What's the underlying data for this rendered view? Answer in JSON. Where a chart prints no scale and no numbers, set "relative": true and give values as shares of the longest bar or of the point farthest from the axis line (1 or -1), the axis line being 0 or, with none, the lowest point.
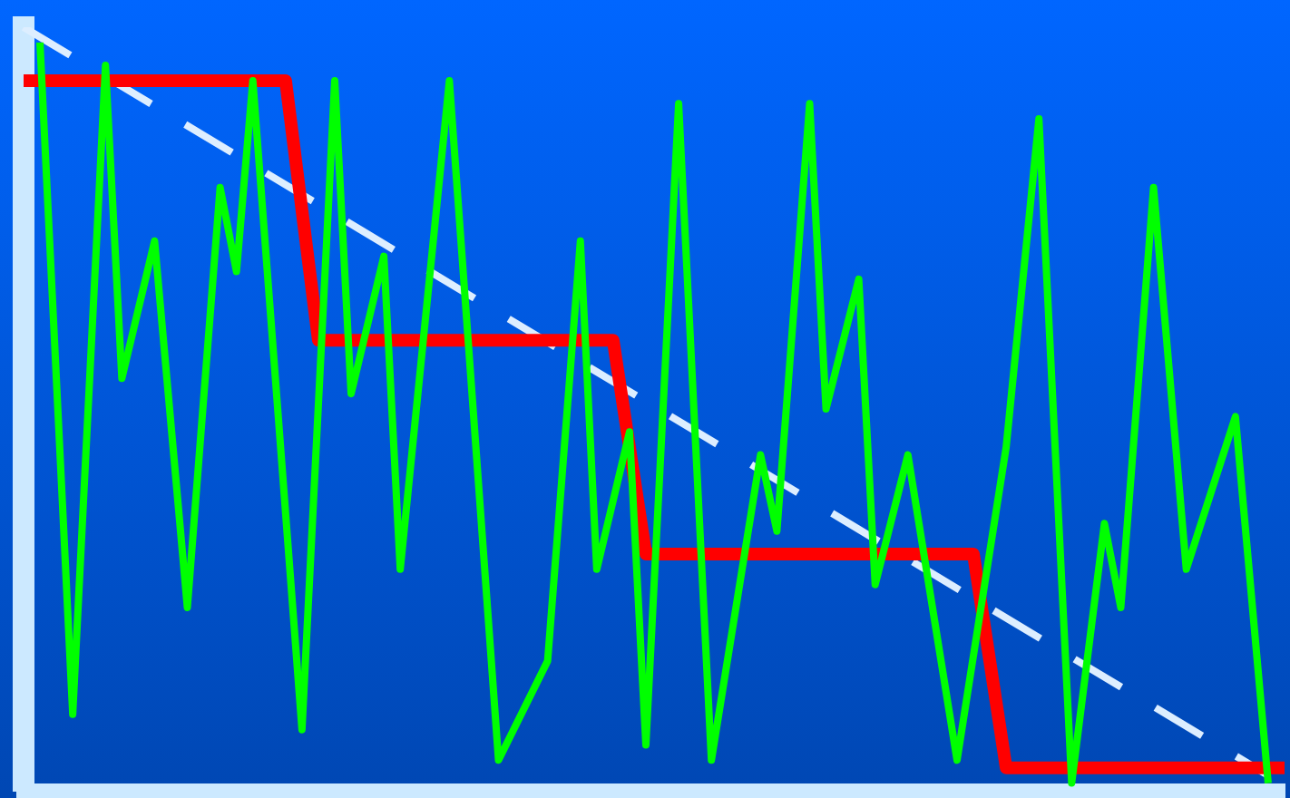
{
  "chart_data": {
    "type": "line",
    "relative": true,
    "categories": [
      null,
      null,
      null,
      null,
      null,
      null,
      null,
      null,
      null,
      null,
      null,
      null,
      null,
      null,
      null,
      null,
      null,
      null,
      null,
      null,
      null,
      null,
      null,
      null,
      null,
      null,
      null,
      null,
      null,
      null,
      null,
      null,
      null,
      null,
      null,
      null,
      null,
      null,
      null,
      null,
      null,
      null,
      null,
      null,
      null,
      null,
      null,
      null,
      null,
      null,
      null,
      null,
      null,
      null,
      null,
      null,
      null,
      null,
      null,
      null,
      null,
      null,
      null,
      null,
      null,
      null,
      null,
      null,
      null,
      null,
      null,
      null,
      null,
      null,
      null,
      null,
      null,
      null
    ],
    "series": [
      {
        "color": "#ddeeff",
        "line_style": "dashed",
        "values": [
          1,
          null,
          null,
          null,
          null,
          null,
          null,
          null,
          null,
          null,
          null,
          null,
          null,
          null,
          null,
          null,
          null,
          null,
          null,
          null,
          null,
          null,
          null,
          null,
          null,
          null,
          null,
          null,
          null,
          null,
          null,
          null,
          null,
          null,
          null,
          null,
          null,
          null,
          null,
          null,
          null,
          null,
          null,
          null,
          null,
          null,
          null,
          null,
          null,
          null,
          null,
          null,
          null,
          null,
          null,
          null,
          null,
          null,
          null,
          null,
          null,
          null,
          null,
          null,
          null,
          null,
          null,
          null,
          null,
          null,
          null,
          null,
          null,
          null,
          null,
          null,
          0.02,
          null
        ]
      },
      {
        "color": "#ff0000",
        "line_style": "solid",
        "values": [
          0.93,
          null,
          null,
          null,
          null,
          null,
          null,
          null,
          null,
          null,
          null,
          null,
          null,
          null,
          null,
          null,
          0.93,
          null,
          0.59,
          null,
          null,
          null,
          null,
          null,
          null,
          null,
          null,
          null,
          null,
          null,
          null,
          null,
          null,
          null,
          null,
          null,
          0.59,
          null,
          0.31,
          null,
          null,
          null,
          null,
          null,
          null,
          null,
          null,
          null,
          null,
          null,
          null,
          null,
          null,
          null,
          null,
          null,
          null,
          null,
          0.31,
          null,
          0.03,
          null,
          null,
          null,
          null,
          null,
          null,
          null,
          null,
          null,
          null,
          null,
          null,
          null,
          null,
          null,
          null,
          0.03
        ]
      },
      {
        "color": "#00ff00",
        "line_style": "solid",
        "values": [
          null,
          0.98,
          null,
          0.1,
          null,
          0.95,
          0.54,
          null,
          0.72,
          null,
          0.24,
          null,
          0.79,
          0.68,
          0.93,
          null,
          null,
          0.08,
          null,
          0.93,
          0.52,
          null,
          0.7,
          0.29,
          null,
          null,
          0.93,
          null,
          null,
          0.04,
          null,
          null,
          0.17,
          null,
          0.72,
          0.29,
          null,
          0.47,
          0.06,
          null,
          0.9,
          null,
          0.04,
          null,
          null,
          0.44,
          0.34,
          null,
          0.9,
          0.5,
          null,
          0.67,
          0.27,
          null,
          0.44,
          null,
          null,
          0.04,
          null,
          null,
          0.45,
          null,
          0.88,
          null,
          0.01,
          null,
          0.35,
          0.24,
          null,
          0.79,
          null,
          0.29,
          null,
          null,
          0.49,
          null,
          0.01,
          null
        ]
      }
    ]
  }
}
